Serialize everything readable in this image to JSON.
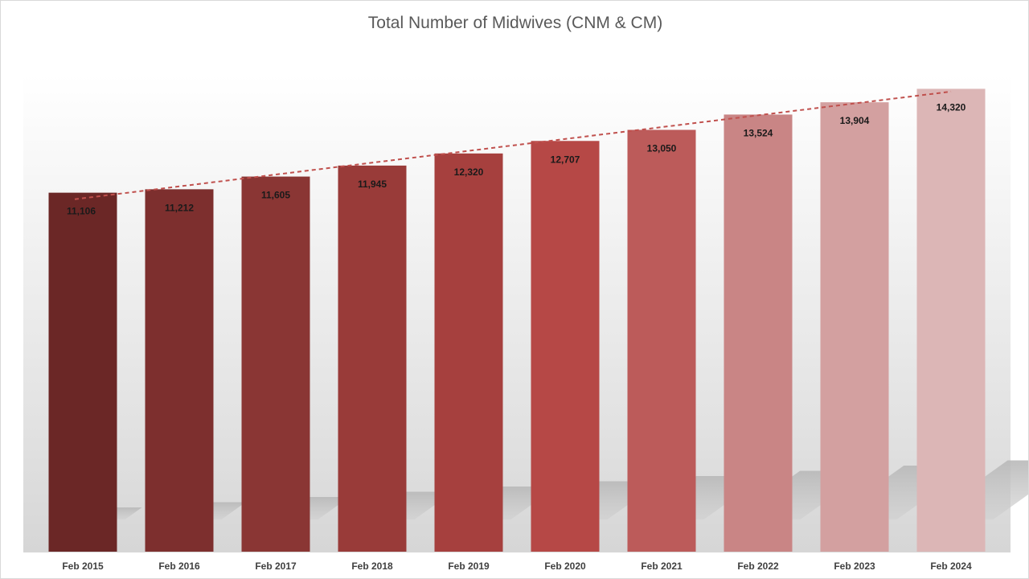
{
  "chart_data": {
    "type": "bar",
    "title": "Total Number of Midwives (CNM & CM)",
    "categories": [
      "Feb 2015",
      "Feb 2016",
      "Feb 2017",
      "Feb 2018",
      "Feb 2019",
      "Feb 2020",
      "Feb 2021",
      "Feb 2022",
      "Feb 2023",
      "Feb 2024"
    ],
    "values": [
      11106,
      11212,
      11605,
      11945,
      12320,
      12707,
      13050,
      13524,
      13904,
      14320
    ],
    "value_labels": [
      "11,106",
      "11,212",
      "11,605",
      "11,945",
      "12,320",
      "12,707",
      "13,050",
      "13,524",
      "13,904",
      "14,320"
    ],
    "series_name": "Total Number of Midwives",
    "trendline": {
      "type": "linear",
      "style": "dashed"
    },
    "ylim": [
      0,
      15600
    ],
    "xlabel": "",
    "ylabel": "",
    "grid": false,
    "legend": "none",
    "colors": {
      "bars": [
        "#6b2726",
        "#7d2f2e",
        "#8a3634",
        "#993b39",
        "#a6403e",
        "#b64846",
        "#bc5b5a",
        "#c98585",
        "#d3a0a0",
        "#dcb6b6"
      ],
      "trendline": "#c0504d",
      "background_top": "#ffffff",
      "background_bottom": "#dcdcdc",
      "shadow": "#bdbdbd"
    }
  }
}
